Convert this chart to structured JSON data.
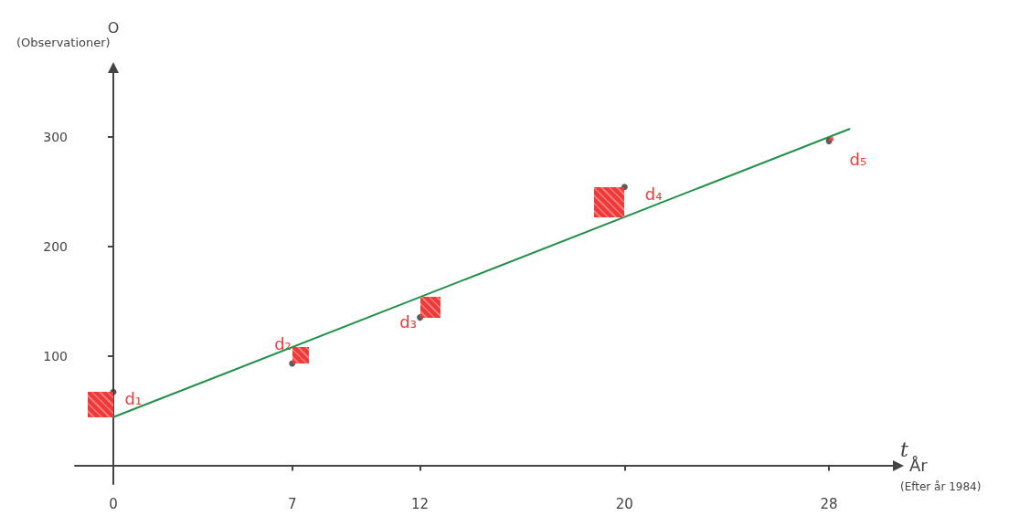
{
  "chart_data": {
    "type": "scatter",
    "xlabel": "t",
    "ylabel": "O",
    "xlim": [
      -1.5,
      30.5
    ],
    "ylim": [
      -17,
      358
    ],
    "xticks": [
      0,
      7,
      12,
      20,
      28
    ],
    "yticks": [
      100,
      200,
      300
    ],
    "marker": "circle",
    "series": [
      {
        "type": "scatter",
        "color": "#333333",
        "x": [
          0,
          7,
          12,
          20,
          28
        ],
        "values": [
          67,
          93,
          135,
          254,
          296
        ]
      },
      {
        "type": "line",
        "color": "#23904a",
        "marker": "none",
        "line_style": "solid",
        "x": [
          0,
          28.8
        ],
        "values": [
          44,
          307
        ]
      }
    ],
    "annotations": [
      "d₁",
      "d₂",
      "d₃",
      "d₄",
      "d₅",
      "(Observationer)",
      "År",
      "(Efter år 1984)"
    ]
  }
}
